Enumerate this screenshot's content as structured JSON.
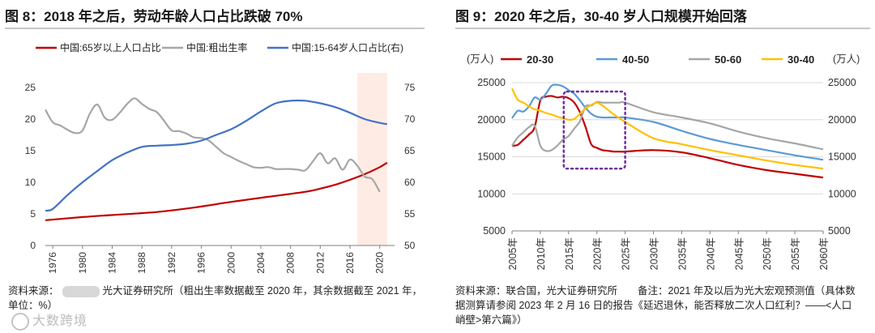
{
  "left": {
    "title": "图 8：2018 年之后，劳动年龄人口占比跌破 70%",
    "source_prefix": "资料来源：",
    "source_rest": "光大证券研究所（粗出生率数据截至 2020 年，其余数据截至 2021 年，",
    "source_line2": "单位：%）"
  },
  "right": {
    "title": "图 9：2020 年之后，30-40 岁人口规模开始回落",
    "source_line1": "资料来源：联合国，光大证券研究所　　备注：2021 年及以后为光大宏观预测值（具体数",
    "source_line2": "据测算请参阅 2023 年 2 月 16 日的报告《延迟退休，能否释放二次人口红利？——<人口",
    "source_line3": "峭壁>第六篇》）"
  },
  "watermark": "大数跨境",
  "chart_data": [
    {
      "type": "line",
      "title": "图 8：2018 年之后，劳动年龄人口占比跌破 70%",
      "x_ticks": [
        "1976",
        "1980",
        "1984",
        "1988",
        "1992",
        "1996",
        "2000",
        "2004",
        "2008",
        "2012",
        "2016",
        "2020"
      ],
      "xlim": [
        1975,
        2022
      ],
      "ylim_left": [
        0,
        25
      ],
      "yticks_left": [
        "0",
        "5",
        "10",
        "15",
        "20",
        "25"
      ],
      "ylim_right": [
        50,
        75
      ],
      "yticks_right": [
        "50",
        "55",
        "60",
        "65",
        "70",
        "75"
      ],
      "highlight_range": [
        2017,
        2021
      ],
      "highlight_color": "#fde3d8",
      "series": [
        {
          "name": "中国:65岁以上人口占比",
          "color": "#c00000",
          "axis": "left",
          "x": [
            1975,
            1980,
            1985,
            1990,
            1995,
            2000,
            2005,
            2010,
            2012,
            2014,
            2016,
            2018,
            2020,
            2021
          ],
          "values": [
            4.0,
            4.5,
            4.9,
            5.3,
            6.0,
            6.9,
            7.7,
            8.5,
            9.0,
            9.6,
            10.4,
            11.3,
            12.4,
            13.1
          ]
        },
        {
          "name": "中国:粗出生率",
          "color": "#a6a6a6",
          "axis": "left",
          "x": [
            1975,
            1976,
            1977,
            1978,
            1979,
            1980,
            1981,
            1982,
            1983,
            1984,
            1985,
            1986,
            1987,
            1988,
            1989,
            1990,
            1991,
            1992,
            1993,
            1994,
            1995,
            1996,
            1997,
            1998,
            1999,
            2000,
            2001,
            2002,
            2003,
            2004,
            2005,
            2006,
            2007,
            2008,
            2009,
            2010,
            2011,
            2012,
            2013,
            2014,
            2015,
            2016,
            2017,
            2018,
            2019,
            2020
          ],
          "values": [
            21.5,
            19.5,
            19.0,
            18.3,
            17.8,
            18.2,
            20.9,
            22.3,
            20.2,
            19.9,
            21.0,
            22.4,
            23.3,
            22.4,
            21.6,
            21.1,
            19.7,
            18.2,
            18.1,
            17.7,
            17.1,
            17.0,
            16.6,
            15.6,
            14.6,
            14.0,
            13.4,
            12.9,
            12.4,
            12.3,
            12.4,
            12.1,
            12.1,
            12.1,
            12.0,
            11.9,
            13.3,
            14.6,
            13.0,
            13.8,
            12.0,
            13.6,
            12.6,
            10.9,
            10.5,
            8.5
          ]
        },
        {
          "name": "中国:15-64岁人口占比(右)",
          "color": "#4472c4",
          "axis": "right",
          "x": [
            1975,
            1976,
            1978,
            1980,
            1982,
            1984,
            1986,
            1988,
            1990,
            1992,
            1994,
            1996,
            1998,
            2000,
            2002,
            2004,
            2006,
            2008,
            2010,
            2012,
            2014,
            2016,
            2018,
            2020,
            2021
          ],
          "values": [
            55.5,
            55.8,
            58.0,
            60.0,
            61.8,
            63.5,
            64.7,
            65.6,
            65.8,
            65.9,
            66.1,
            66.6,
            67.5,
            68.4,
            69.7,
            71.2,
            72.5,
            72.9,
            72.9,
            72.5,
            71.9,
            71.0,
            70.0,
            69.4,
            69.2
          ]
        }
      ]
    },
    {
      "type": "line",
      "title": "图 9：2020 年之后，30-40 岁人口规模开始回落",
      "unit_left": "(万人)",
      "unit_right": "(万人)",
      "x_ticks": [
        "2005年",
        "2010年",
        "2015年",
        "2020年",
        "2025年",
        "2030年",
        "2035年",
        "2040年",
        "2045年",
        "2050年",
        "2055年",
        "2060年"
      ],
      "xlim": [
        2005,
        2060
      ],
      "ylim": [
        5000,
        25000
      ],
      "yticks": [
        "5000",
        "10000",
        "15000",
        "20000",
        "25000"
      ],
      "highlight_range": [
        2015,
        2025
      ],
      "highlight_ylim": [
        13400,
        23800
      ],
      "series": [
        {
          "name": "20-30",
          "color": "#c00000",
          "x": [
            2005,
            2006,
            2007,
            2008,
            2009,
            2010,
            2011,
            2012,
            2013,
            2014,
            2015,
            2016,
            2017,
            2018,
            2019,
            2020,
            2021,
            2022,
            2023,
            2024,
            2025,
            2030,
            2035,
            2040,
            2045,
            2050,
            2055,
            2060
          ],
          "values": [
            16500,
            16600,
            17300,
            18000,
            19000,
            22600,
            23100,
            23200,
            23000,
            23100,
            22900,
            22300,
            21000,
            19000,
            16700,
            16200,
            15900,
            15800,
            15700,
            15700,
            15700,
            15900,
            15600,
            14800,
            13900,
            13200,
            12700,
            12200
          ]
        },
        {
          "name": "40-50",
          "color": "#5b9bd5",
          "x": [
            2005,
            2006,
            2007,
            2008,
            2009,
            2010,
            2011,
            2012,
            2013,
            2014,
            2015,
            2016,
            2017,
            2018,
            2019,
            2020,
            2021,
            2022,
            2023,
            2024,
            2025,
            2030,
            2035,
            2040,
            2045,
            2050,
            2055,
            2060
          ],
          "values": [
            20200,
            21200,
            21100,
            21800,
            23000,
            22700,
            23500,
            24600,
            24700,
            24500,
            24000,
            23500,
            22600,
            21600,
            20800,
            20400,
            20300,
            20300,
            20300,
            20300,
            20300,
            19700,
            18500,
            17400,
            16600,
            15900,
            15200,
            14600
          ]
        },
        {
          "name": "50-60",
          "color": "#a6a6a6",
          "x": [
            2005,
            2006,
            2007,
            2008,
            2009,
            2010,
            2011,
            2012,
            2013,
            2014,
            2015,
            2016,
            2017,
            2018,
            2019,
            2020,
            2021,
            2022,
            2023,
            2024,
            2025,
            2030,
            2035,
            2040,
            2045,
            2050,
            2055,
            2060
          ],
          "values": [
            16500,
            17600,
            18300,
            19000,
            19200,
            16500,
            15800,
            15900,
            16500,
            17300,
            17800,
            18800,
            19800,
            21800,
            21900,
            22400,
            22300,
            22300,
            22300,
            22300,
            22300,
            21000,
            20300,
            19500,
            18400,
            17500,
            16800,
            16000
          ]
        },
        {
          "name": "30-40",
          "color": "#ffc000",
          "x": [
            2005,
            2006,
            2007,
            2008,
            2009,
            2010,
            2011,
            2012,
            2013,
            2014,
            2015,
            2016,
            2017,
            2018,
            2019,
            2020,
            2021,
            2022,
            2023,
            2024,
            2025,
            2030,
            2035,
            2040,
            2045,
            2050,
            2055,
            2060
          ],
          "values": [
            24200,
            22700,
            22300,
            21800,
            21400,
            21200,
            20900,
            20700,
            20400,
            20200,
            20000,
            20100,
            20800,
            21500,
            22000,
            22300,
            21900,
            21300,
            20700,
            20200,
            19700,
            17500,
            16700,
            15900,
            15200,
            14500,
            13900,
            13400
          ]
        }
      ]
    }
  ]
}
